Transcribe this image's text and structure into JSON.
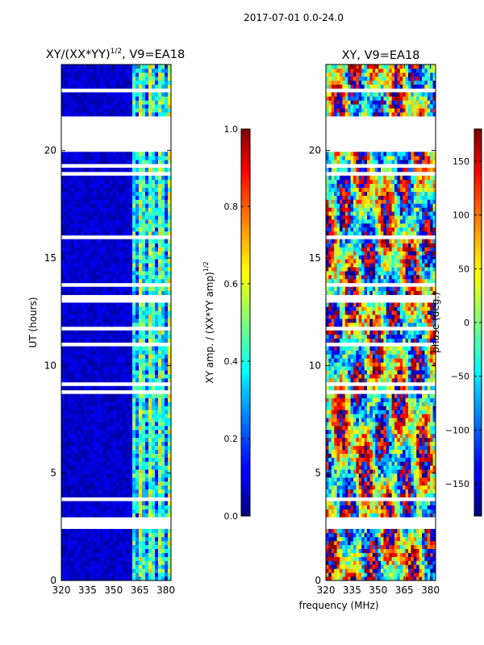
{
  "figure": {
    "suptitle": "2017-07-01 0.0-24.0",
    "xlabel_shared": "frequency (MHz)"
  },
  "chart_data": [
    {
      "type": "heatmap",
      "title_text": "XY/(XX*YY)",
      "title_exponent": "1/2",
      "title_suffix": ", V9=EA18",
      "xlabel": "",
      "ylabel": "UT (hours)",
      "xlim": [
        320,
        383
      ],
      "ylim": [
        0,
        24
      ],
      "xticks": [
        320,
        335,
        350,
        365,
        380
      ],
      "yticks": [
        0,
        5,
        10,
        15,
        20
      ],
      "colormap": "jet",
      "note": "flagged (white) time ranges listed as [start,end] UT hours; gap bands across all frequencies",
      "flagged_times": [
        [
          2.35,
          2.95
        ],
        [
          13.0,
          13.25
        ],
        [
          14.0,
          14.1
        ],
        [
          19.9,
          21.65
        ]
      ],
      "bright_band_start_mhz": 360,
      "bright_band_end_mhz": 383,
      "colorbar": {
        "label_text": "XY amp. / (XX*YY amp)",
        "label_exponent": "1/2",
        "range": [
          0.0,
          1.0
        ],
        "ticks": [
          "0.0",
          "0.2",
          "0.4",
          "0.6",
          "0.8",
          "1.0"
        ]
      }
    },
    {
      "type": "heatmap",
      "title_text": "XY, V9=EA18",
      "xlabel": "frequency (MHz)",
      "ylabel": "",
      "xlim": [
        320,
        383
      ],
      "ylim": [
        0,
        24
      ],
      "xticks": [
        320,
        335,
        350,
        365,
        380
      ],
      "yticks": [
        0,
        5,
        10,
        15,
        20
      ],
      "colormap": "jet",
      "flagged_times": [
        [
          2.35,
          2.95
        ],
        [
          13.0,
          13.25
        ],
        [
          14.0,
          14.1
        ],
        [
          19.9,
          21.65
        ]
      ],
      "colorbar": {
        "label_text": "phase (deg.)",
        "range": [
          -180,
          180
        ],
        "ticks": [
          "−150",
          "−100",
          "−50",
          "0",
          "50",
          "100",
          "150"
        ]
      }
    }
  ]
}
